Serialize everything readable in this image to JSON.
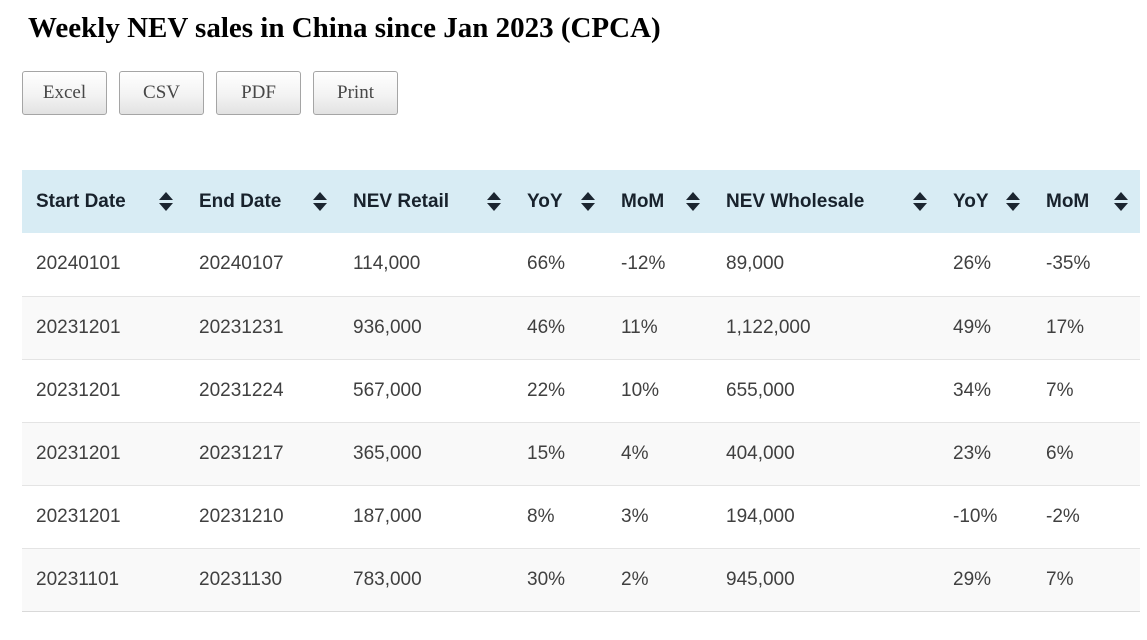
{
  "page": {
    "title": "Weekly NEV sales in China since Jan 2023 (CPCA)"
  },
  "toolbar": {
    "buttons": [
      {
        "label": "Excel"
      },
      {
        "label": "CSV"
      },
      {
        "label": "PDF"
      },
      {
        "label": "Print"
      }
    ]
  },
  "table": {
    "columns": [
      {
        "label": "Start Date",
        "sortable": true
      },
      {
        "label": "End Date",
        "sortable": true
      },
      {
        "label": "NEV Retail",
        "sortable": true
      },
      {
        "label": "YoY",
        "sortable": true
      },
      {
        "label": "MoM",
        "sortable": true
      },
      {
        "label": "NEV Wholesale",
        "sortable": true
      },
      {
        "label": "YoY",
        "sortable": true
      },
      {
        "label": "MoM",
        "sortable": true
      }
    ],
    "rows": [
      {
        "cells": [
          "20240101",
          "20240107",
          "114,000",
          "66%",
          "-12%",
          "89,000",
          "26%",
          "-35%"
        ]
      },
      {
        "cells": [
          "20231201",
          "20231231",
          "936,000",
          "46%",
          "11%",
          "1,122,000",
          "49%",
          "17%"
        ]
      },
      {
        "cells": [
          "20231201",
          "20231224",
          "567,000",
          "22%",
          "10%",
          "655,000",
          "34%",
          "7%"
        ]
      },
      {
        "cells": [
          "20231201",
          "20231217",
          "365,000",
          "15%",
          "4%",
          "404,000",
          "23%",
          "6%"
        ]
      },
      {
        "cells": [
          "20231201",
          "20231210",
          "187,000",
          "8%",
          "3%",
          "194,000",
          "-10%",
          "-2%"
        ]
      },
      {
        "cells": [
          "20231101",
          "20231130",
          "783,000",
          "30%",
          "2%",
          "945,000",
          "29%",
          "7%"
        ]
      }
    ]
  },
  "icons": {
    "sort": "sort-updown-icon"
  },
  "colors": {
    "header_background": "#d8ecf4",
    "header_text": "#18222c",
    "row_alt_background": "#f9f9f9",
    "row_border": "#e4e4e4",
    "body_text": "#404040",
    "button_border": "#a5a5a5"
  }
}
